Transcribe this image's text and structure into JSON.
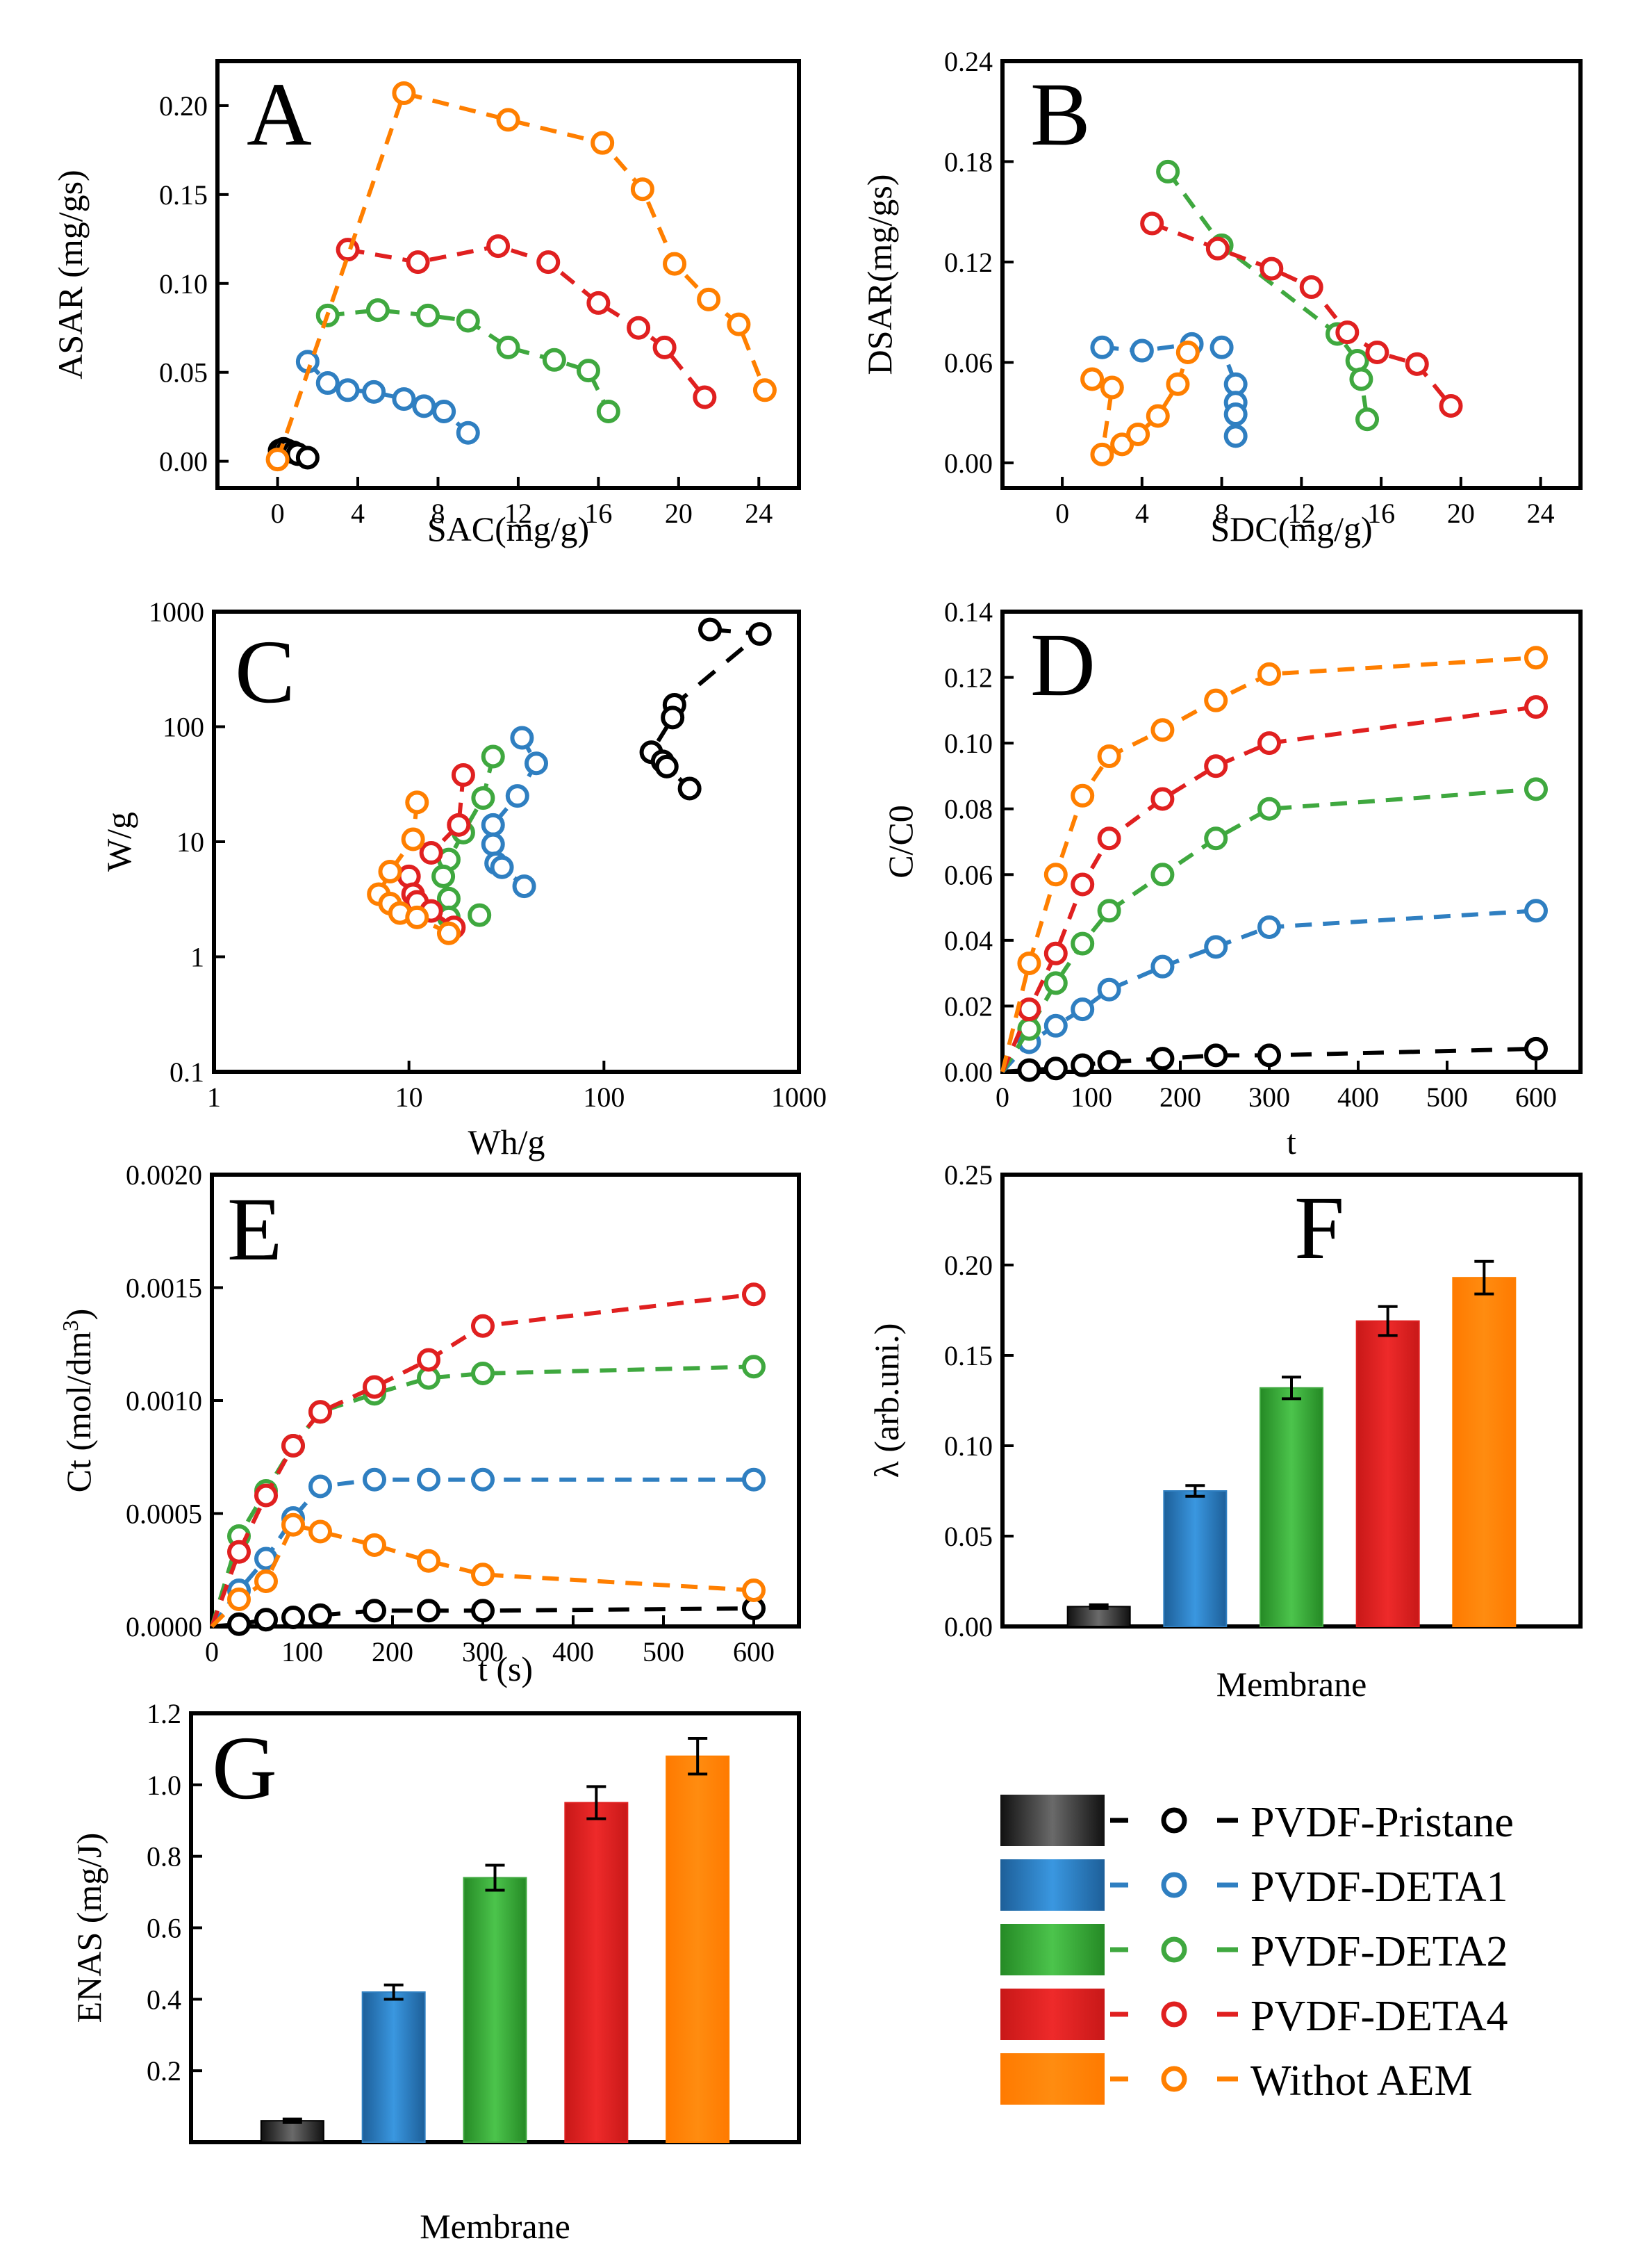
{
  "colors": {
    "PVDF-Pristane": "#000000",
    "PVDF-DETA1": "#2f7fc1",
    "PVDF-DETA2": "#3fa83f",
    "PVDF-DETA4": "#e02020",
    "Withot AEM": "#ff7f00"
  },
  "legend": {
    "items": [
      "PVDF-Pristane",
      "PVDF-DETA1",
      "PVDF-DETA2",
      "PVDF-DETA4",
      "Withot AEM"
    ]
  },
  "chart_data": [
    {
      "id": "A",
      "type": "scatter",
      "letter": "A",
      "xlabel": "SAC(mg/g)",
      "ylabel": "ASAR (mg/gs)",
      "xlim": [
        -3,
        26
      ],
      "ylim": [
        -0.015,
        0.225
      ],
      "xticks": [
        "0",
        "4",
        "8",
        "12",
        "16",
        "20",
        "24"
      ],
      "yticks": [
        "0.00",
        "0.05",
        "0.10",
        "0.15",
        "0.20"
      ],
      "series": [
        {
          "name": "PVDF-Pristane",
          "x": [
            0.1,
            0.3,
            0.5,
            0.8,
            1.0,
            1.5
          ],
          "y": [
            0.006,
            0.007,
            0.006,
            0.005,
            0.004,
            0.002
          ]
        },
        {
          "name": "PVDF-DETA1",
          "x": [
            1.5,
            2.5,
            3.5,
            4.8,
            6.3,
            7.3,
            8.3,
            9.5
          ],
          "y": [
            0.056,
            0.044,
            0.04,
            0.039,
            0.035,
            0.031,
            0.028,
            0.016
          ]
        },
        {
          "name": "PVDF-DETA2",
          "x": [
            2.5,
            5.0,
            7.5,
            9.5,
            11.5,
            13.8,
            15.5,
            16.5
          ],
          "y": [
            0.082,
            0.085,
            0.082,
            0.079,
            0.064,
            0.057,
            0.051,
            0.028
          ]
        },
        {
          "name": "PVDF-DETA4",
          "x": [
            3.5,
            7.0,
            11.0,
            13.5,
            16.0,
            18.0,
            19.3,
            21.3
          ],
          "y": [
            0.119,
            0.112,
            0.121,
            0.112,
            0.089,
            0.075,
            0.064,
            0.036
          ]
        },
        {
          "name": "Withot AEM",
          "x": [
            0.0,
            6.3,
            11.5,
            16.2,
            18.2,
            19.8,
            21.5,
            23.0,
            24.3
          ],
          "y": [
            0.001,
            0.207,
            0.192,
            0.179,
            0.153,
            0.111,
            0.091,
            0.077,
            0.04
          ]
        }
      ]
    },
    {
      "id": "B",
      "type": "scatter",
      "letter": "B",
      "xlabel": "SDC(mg/g)",
      "ylabel": "DSAR(mg/gs)",
      "xlim": [
        -3,
        26
      ],
      "ylim": [
        -0.015,
        0.24
      ],
      "xticks": [
        "0",
        "4",
        "8",
        "12",
        "16",
        "20",
        "24"
      ],
      "yticks": [
        "0.00",
        "0.06",
        "0.12",
        "0.18",
        "0.24"
      ],
      "series": [
        {
          "name": "PVDF-DETA1",
          "x": [
            2.0,
            4.0,
            6.5,
            8.0,
            8.7,
            8.7,
            8.7,
            8.7
          ],
          "y": [
            0.069,
            0.067,
            0.071,
            0.069,
            0.047,
            0.036,
            0.029,
            0.016
          ]
        },
        {
          "name": "PVDF-DETA2",
          "x": [
            5.3,
            8.0,
            13.8,
            14.8,
            15.0,
            15.3
          ],
          "y": [
            0.174,
            0.13,
            0.077,
            0.061,
            0.05,
            0.026
          ]
        },
        {
          "name": "PVDF-DETA4",
          "x": [
            4.5,
            7.8,
            10.5,
            12.5,
            14.3,
            15.8,
            17.8,
            19.5
          ],
          "y": [
            0.143,
            0.128,
            0.116,
            0.105,
            0.078,
            0.066,
            0.059,
            0.034
          ]
        },
        {
          "name": "Withot AEM",
          "x": [
            1.5,
            2.5,
            2.0,
            3.0,
            3.8,
            4.8,
            5.8,
            6.3
          ],
          "y": [
            0.05,
            0.045,
            0.005,
            0.011,
            0.017,
            0.028,
            0.047,
            0.066
          ]
        }
      ]
    },
    {
      "id": "C",
      "type": "scatter",
      "letter": "C",
      "scale": "log",
      "xlabel": "Wh/g",
      "ylabel": "W/g",
      "xlim": [
        1,
        1000
      ],
      "ylim": [
        0.1,
        1000
      ],
      "xticks": [
        "1",
        "10",
        "100",
        "1000"
      ],
      "yticks": [
        "0.1",
        "1",
        "10",
        "100",
        "1000"
      ],
      "series": [
        {
          "name": "PVDF-Pristane",
          "x": [
            350,
            630,
            230,
            225,
            175,
            200,
            210,
            275
          ],
          "y": [
            700,
            640,
            155,
            120,
            60,
            50,
            45,
            29
          ]
        },
        {
          "name": "PVDF-DETA1",
          "x": [
            38,
            45,
            36,
            27,
            27,
            28,
            30,
            39
          ],
          "y": [
            80,
            48,
            25,
            14,
            9.5,
            6.5,
            6.0,
            4.1
          ]
        },
        {
          "name": "PVDF-DETA2",
          "x": [
            27,
            24,
            19,
            16,
            15,
            16,
            16,
            23
          ],
          "y": [
            55,
            24,
            12,
            7,
            5,
            3.2,
            2.2,
            2.3
          ]
        },
        {
          "name": "PVDF-DETA4",
          "x": [
            19,
            18,
            13,
            10,
            10.5,
            11,
            13,
            17
          ],
          "y": [
            38,
            14,
            8,
            5,
            3.5,
            3,
            2.5,
            1.8
          ]
        },
        {
          "name": "Withot AEM",
          "x": [
            11,
            10.5,
            8,
            7,
            8,
            9,
            11,
            16
          ],
          "y": [
            22,
            10.5,
            5.5,
            3.5,
            2.9,
            2.4,
            2.2,
            1.6
          ]
        }
      ]
    },
    {
      "id": "D",
      "type": "line",
      "letter": "D",
      "xlabel": "t",
      "ylabel": "C/C0",
      "xlim": [
        0,
        650
      ],
      "ylim": [
        0,
        0.14
      ],
      "xticks": [
        "0",
        "100",
        "200",
        "300",
        "400",
        "500",
        "600"
      ],
      "yticks": [
        "0.00",
        "0.02",
        "0.04",
        "0.06",
        "0.08",
        "0.10",
        "0.12",
        "0.14"
      ],
      "series": [
        {
          "name": "PVDF-Pristane",
          "x": [
            0,
            30,
            60,
            90,
            120,
            180,
            240,
            300,
            600
          ],
          "y": [
            0,
            0.0005,
            0.001,
            0.002,
            0.003,
            0.004,
            0.005,
            0.005,
            0.007
          ]
        },
        {
          "name": "PVDF-DETA1",
          "x": [
            0,
            30,
            60,
            90,
            120,
            180,
            240,
            300,
            600
          ],
          "y": [
            0,
            0.009,
            0.014,
            0.019,
            0.025,
            0.032,
            0.038,
            0.044,
            0.049
          ]
        },
        {
          "name": "PVDF-DETA2",
          "x": [
            0,
            30,
            60,
            90,
            120,
            180,
            240,
            300,
            600
          ],
          "y": [
            0,
            0.013,
            0.027,
            0.039,
            0.049,
            0.06,
            0.071,
            0.08,
            0.086
          ]
        },
        {
          "name": "PVDF-DETA4",
          "x": [
            0,
            30,
            60,
            90,
            120,
            180,
            240,
            300,
            600
          ],
          "y": [
            0,
            0.019,
            0.036,
            0.057,
            0.071,
            0.083,
            0.093,
            0.1,
            0.111
          ]
        },
        {
          "name": "Withot AEM",
          "x": [
            0,
            30,
            60,
            90,
            120,
            180,
            240,
            300,
            600
          ],
          "y": [
            0,
            0.033,
            0.06,
            0.084,
            0.096,
            0.104,
            0.113,
            0.121,
            0.126
          ]
        }
      ]
    },
    {
      "id": "E",
      "type": "line",
      "letter": "E",
      "xlabel": "t (s)",
      "ylabel": "Ct (mol/dm",
      "ylabel_sup": "3",
      "ylabel_end": ")",
      "xlim": [
        0,
        650
      ],
      "ylim": [
        0,
        0.002
      ],
      "xticks": [
        "0",
        "100",
        "200",
        "300",
        "400",
        "500",
        "600"
      ],
      "yticks": [
        "0.0000",
        "0.0005",
        "0.0010",
        "0.0015",
        "0.0020"
      ],
      "series": [
        {
          "name": "PVDF-Pristane",
          "x": [
            0,
            30,
            60,
            90,
            120,
            180,
            240,
            300,
            600
          ],
          "y": [
            0,
            1e-05,
            3e-05,
            4e-05,
            5e-05,
            7e-05,
            7e-05,
            7e-05,
            8e-05
          ]
        },
        {
          "name": "PVDF-DETA1",
          "x": [
            0,
            30,
            60,
            90,
            120,
            180,
            240,
            300,
            600
          ],
          "y": [
            0,
            0.00016,
            0.0003,
            0.00048,
            0.00062,
            0.00065,
            0.00065,
            0.00065,
            0.00065
          ]
        },
        {
          "name": "PVDF-DETA2",
          "x": [
            0,
            30,
            60,
            90,
            120,
            180,
            240,
            300,
            600
          ],
          "y": [
            0,
            0.0004,
            0.0006,
            0.0008,
            0.00095,
            0.00103,
            0.0011,
            0.00112,
            0.00115
          ]
        },
        {
          "name": "PVDF-DETA4",
          "x": [
            0,
            30,
            60,
            90,
            120,
            180,
            240,
            300,
            600
          ],
          "y": [
            0,
            0.00033,
            0.00058,
            0.0008,
            0.00095,
            0.00106,
            0.00118,
            0.00133,
            0.00147
          ]
        },
        {
          "name": "Withot AEM",
          "x": [
            0,
            30,
            60,
            90,
            120,
            180,
            240,
            300,
            600
          ],
          "y": [
            0,
            0.00012,
            0.0002,
            0.00045,
            0.00042,
            0.00036,
            0.00029,
            0.00023,
            0.00016
          ]
        }
      ]
    },
    {
      "id": "F",
      "type": "bar",
      "letter": "F",
      "xlabel": "Membrane",
      "ylabel": "λ (arb.uni.)",
      "ylim": [
        0,
        0.25
      ],
      "yticks": [
        "0.00",
        "0.05",
        "0.10",
        "0.15",
        "0.20",
        "0.25"
      ],
      "categories": [
        "PVDF-Pristane",
        "PVDF-DETA1",
        "PVDF-DETA2",
        "PVDF-DETA4",
        "Withot AEM"
      ],
      "values": [
        0.011,
        0.075,
        0.132,
        0.169,
        0.193
      ],
      "errors": [
        0.001,
        0.003,
        0.006,
        0.008,
        0.009
      ]
    },
    {
      "id": "G",
      "type": "bar",
      "letter": "G",
      "xlabel": "Membrane",
      "ylabel": "ENAS (mg/J)",
      "ylim": [
        0,
        1.2
      ],
      "yticks": [
        "",
        "0.2",
        "0.4",
        "0.6",
        "0.8",
        "1.0",
        "1.2"
      ],
      "categories": [
        "PVDF-Pristane",
        "PVDF-DETA1",
        "PVDF-DETA2",
        "PVDF-DETA4",
        "Withot AEM"
      ],
      "values": [
        0.06,
        0.42,
        0.74,
        0.95,
        1.08
      ],
      "errors": [
        0.005,
        0.02,
        0.035,
        0.045,
        0.05
      ]
    }
  ]
}
